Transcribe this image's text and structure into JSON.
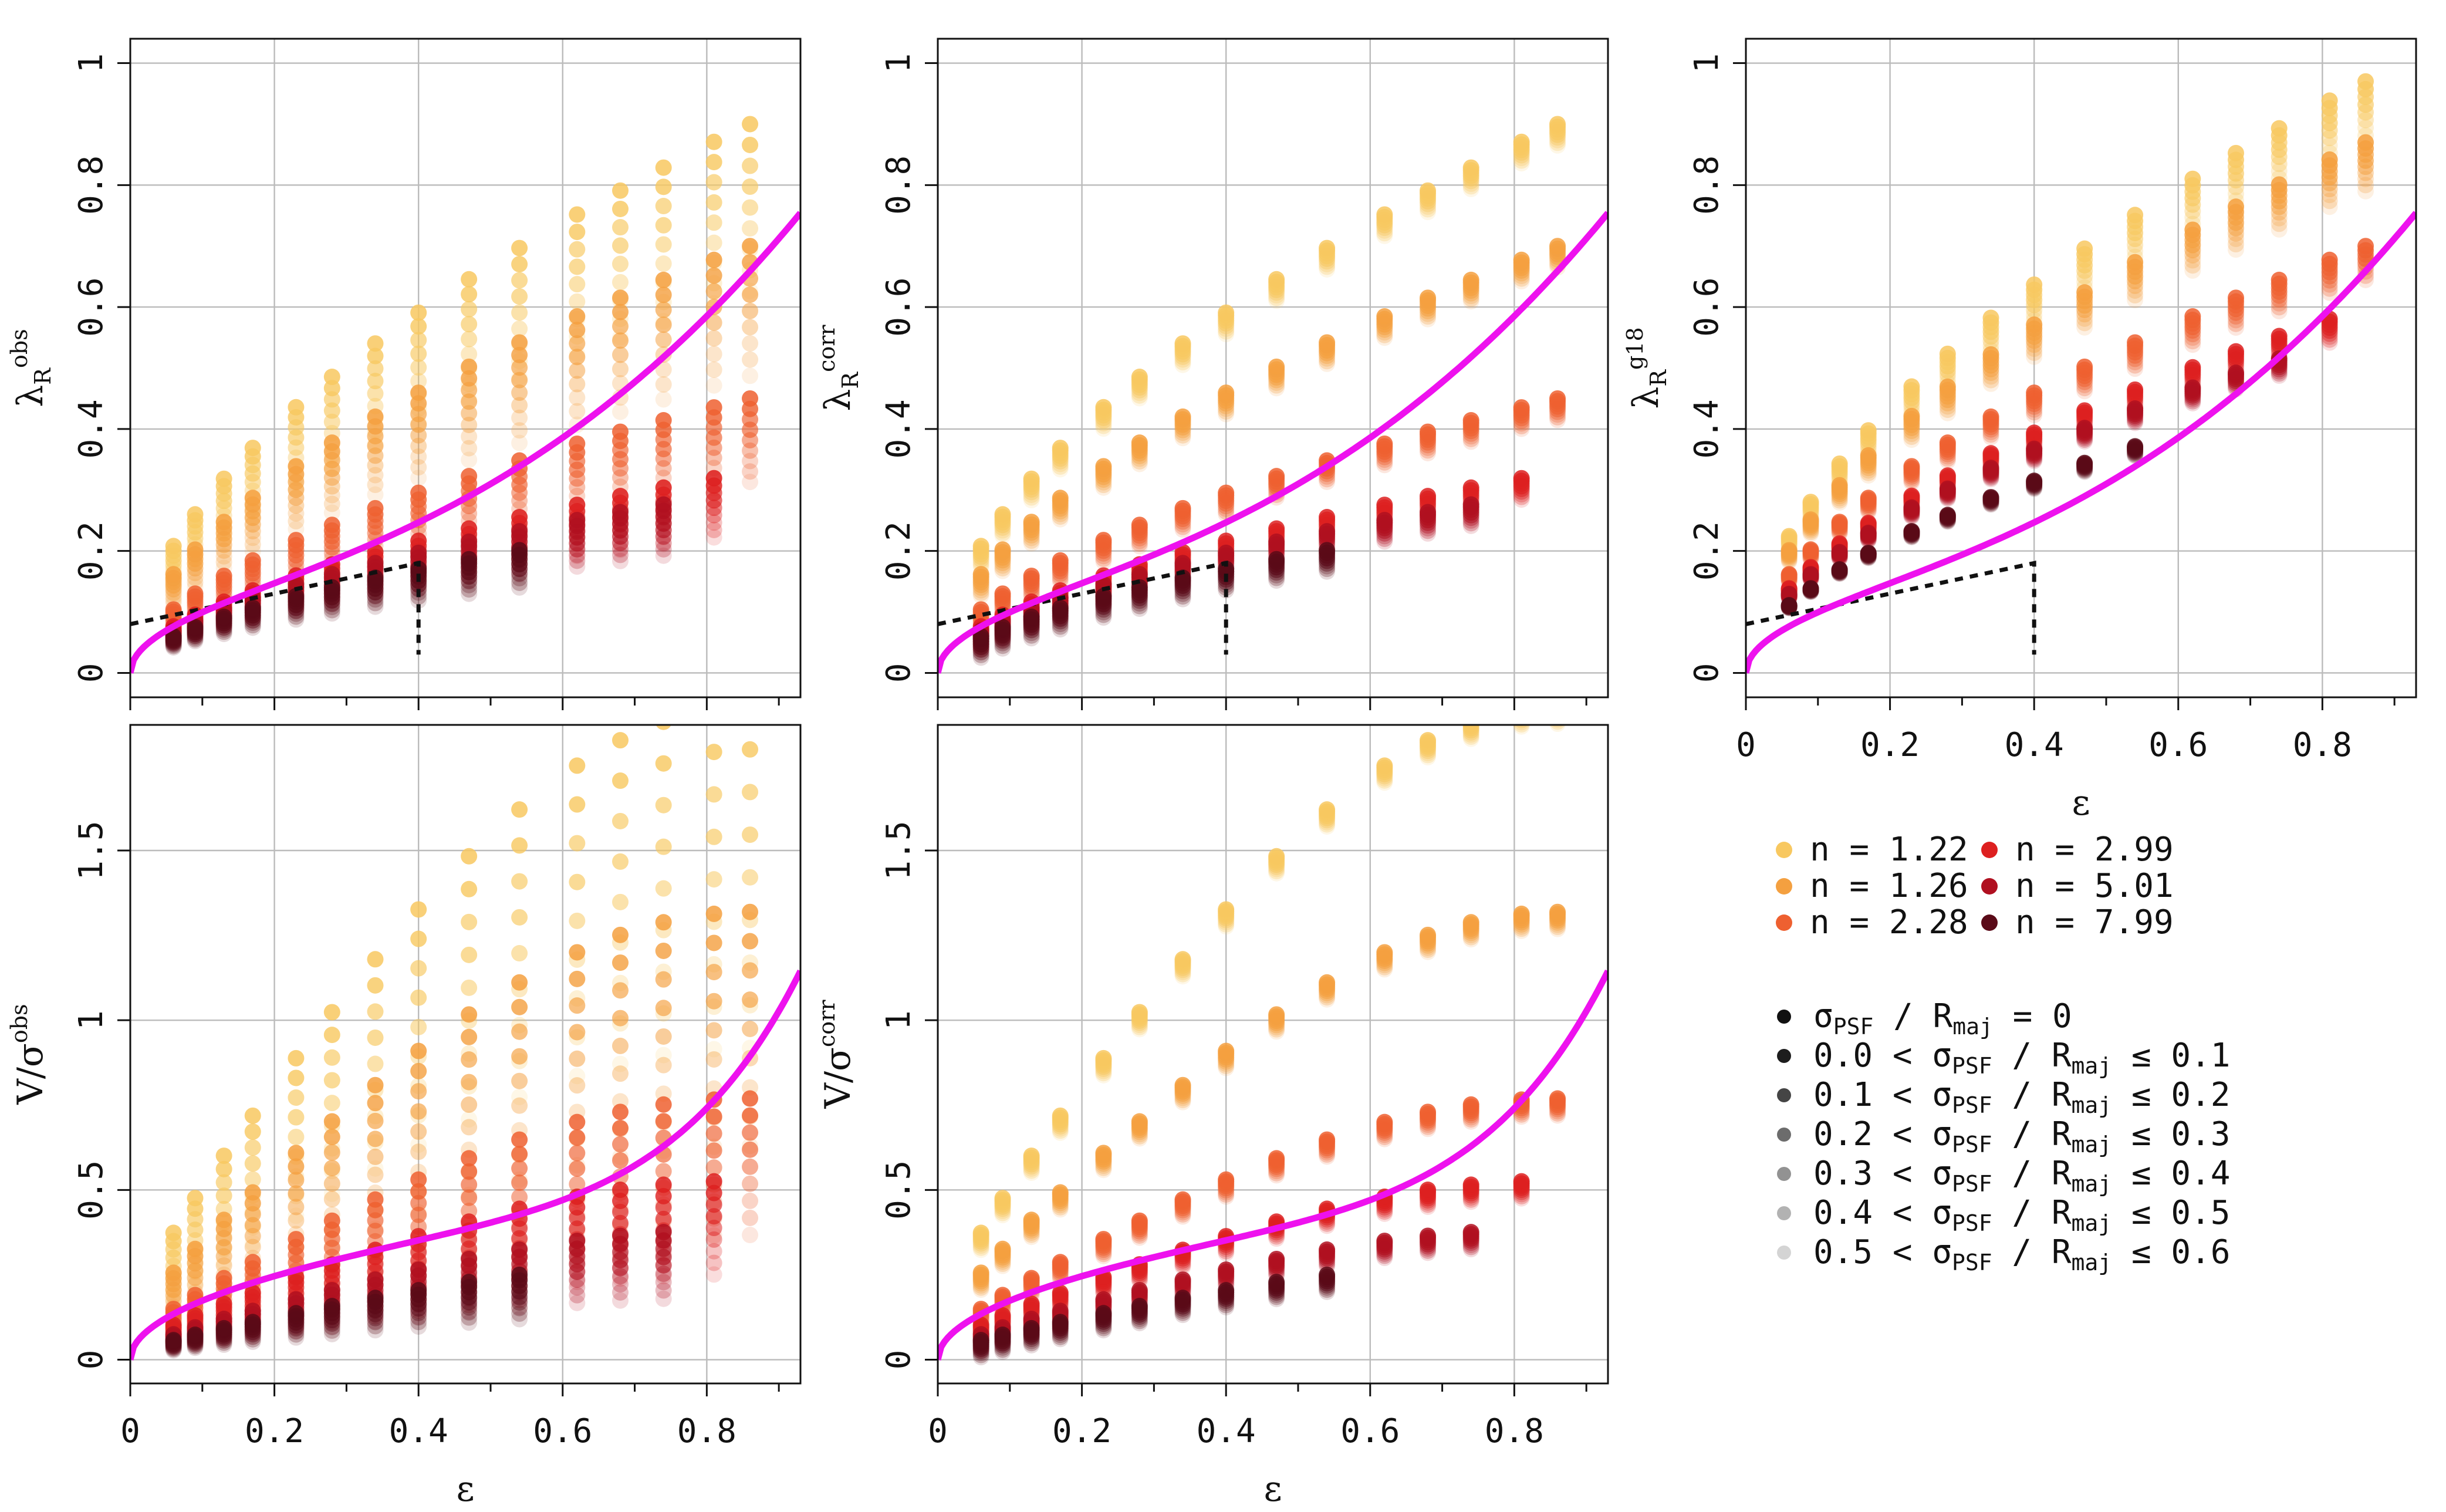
{
  "legend": {
    "models": [
      {
        "label": "n = 1.22",
        "color": "#f8c860"
      },
      {
        "label": "n = 1.26",
        "color": "#f4a040"
      },
      {
        "label": "n = 2.28",
        "color": "#ee6030"
      },
      {
        "label": "n = 2.99",
        "color": "#dd2020"
      },
      {
        "label": "n = 5.01",
        "color": "#b01020"
      },
      {
        "label": "n = 7.99",
        "color": "#5a0a18"
      }
    ],
    "psf_bins": [
      {
        "left": "",
        "right": "= 0",
        "alpha": 1.0
      },
      {
        "left": "0.0 <",
        "right": "≤ 0.1",
        "alpha": 0.95
      },
      {
        "left": "0.1 <",
        "right": "≤ 0.2",
        "alpha": 0.78
      },
      {
        "left": "0.2 <",
        "right": "≤ 0.3",
        "alpha": 0.62
      },
      {
        "left": "0.3 <",
        "right": "≤ 0.4",
        "alpha": 0.46
      },
      {
        "left": "0.4 <",
        "right": "≤ 0.5",
        "alpha": 0.32
      },
      {
        "left": "0.5 <",
        "right": "≤ 0.6",
        "alpha": 0.18
      }
    ],
    "psf_symbol": "σ",
    "psf_sub": "PSF",
    "slash": "/",
    "rmaj_symbol": "R",
    "rmaj_sub": "maj"
  },
  "chart_data": [
    {
      "type": "scatter",
      "panel": "lambda-obs",
      "ylabel": "λ",
      "ylabel_sub": "R",
      "ylabel_sup": "obs",
      "xlabel": "",
      "xlim": [
        0,
        0.93
      ],
      "ylim": [
        -0.04,
        1.04
      ],
      "xticks": [
        "0",
        "0.2",
        "0.4",
        "0.6",
        "0.8"
      ],
      "yticks": [
        0,
        0.2,
        0.4,
        0.6,
        0.8,
        1
      ],
      "show_xtick_labels": false,
      "grid": true,
      "point_model": "lambda",
      "spread": 0.32,
      "uniform_spread": true,
      "has_dashed_region": true,
      "reference_curve": "lambda",
      "curve_color": "#ee11ee"
    },
    {
      "type": "scatter",
      "panel": "lambda-corr",
      "ylabel": "λ",
      "ylabel_sub": "R",
      "ylabel_sup": "corr",
      "xlabel": "",
      "xlim": [
        0,
        0.93
      ],
      "ylim": [
        -0.04,
        1.04
      ],
      "xticks": [
        "0",
        "0.2",
        "0.4",
        "0.6",
        "0.8"
      ],
      "yticks": [
        0,
        0.2,
        0.4,
        0.6,
        0.8,
        1
      ],
      "show_xtick_labels": false,
      "grid": true,
      "point_model": "lambda",
      "spread": 0.035,
      "uniform_spread": true,
      "has_dashed_region": true,
      "reference_curve": "lambda",
      "curve_color": "#ee11ee"
    },
    {
      "type": "scatter",
      "panel": "lambda-g18",
      "ylabel": "λ",
      "ylabel_sub": "R",
      "ylabel_sup": "g18",
      "xlabel": "ε",
      "xlim": [
        0,
        0.93
      ],
      "ylim": [
        -0.04,
        1.04
      ],
      "xticks": [
        "0",
        "0.2",
        "0.4",
        "0.6",
        "0.8"
      ],
      "yticks": [
        0,
        0.2,
        0.4,
        0.6,
        0.8,
        1
      ],
      "show_xtick_labels": true,
      "grid": true,
      "point_model": "lambda_g18",
      "spread": 0.11,
      "uniform_spread": false,
      "has_dashed_region": true,
      "reference_curve": "lambda",
      "curve_color": "#ee11ee"
    },
    {
      "type": "scatter",
      "panel": "vsigma-obs",
      "ylabel": "V/σ",
      "ylabel_sub": "",
      "ylabel_sup": "obs",
      "xlabel": "ε",
      "xlim": [
        0,
        0.93
      ],
      "ylim": [
        -0.07,
        1.87
      ],
      "xticks": [
        "0",
        "0.2",
        "0.4",
        "0.6",
        "0.8"
      ],
      "yticks": [
        0,
        0.5,
        1,
        1.5
      ],
      "show_xtick_labels": true,
      "grid": true,
      "point_model": "vsigma",
      "spread": 0.55,
      "uniform_spread": true,
      "has_dashed_region": false,
      "reference_curve": "vsigma",
      "curve_color": "#ee11ee"
    },
    {
      "type": "scatter",
      "panel": "vsigma-corr",
      "ylabel": "V/σ",
      "ylabel_sub": "",
      "ylabel_sup": "corr",
      "xlabel": "ε",
      "xlim": [
        0,
        0.93
      ],
      "ylim": [
        -0.07,
        1.87
      ],
      "xticks": [
        "0",
        "0.2",
        "0.4",
        "0.6",
        "0.8"
      ],
      "yticks": [
        0,
        0.5,
        1,
        1.5
      ],
      "show_xtick_labels": true,
      "grid": true,
      "point_model": "vsigma",
      "spread": 0.05,
      "uniform_spread": true,
      "has_dashed_region": false,
      "reference_curve": "vsigma",
      "curve_color": "#ee11ee"
    }
  ],
  "model_tracks": {
    "eps": [
      0.06,
      0.09,
      0.13,
      0.17,
      0.23,
      0.28,
      0.34,
      0.4,
      0.47,
      0.54,
      0.62,
      0.68,
      0.74,
      0.81,
      0.86
    ],
    "lambda_max": [
      0.9,
      0.7,
      0.45,
      0.33,
      0.3,
      0.26
    ],
    "lambda_g18_max": [
      0.97,
      0.87,
      0.7,
      0.6,
      0.56,
      0.48
    ],
    "vsigma_max": [
      1.75,
      1.2,
      0.7,
      0.48,
      0.35,
      0.27
    ],
    "eps_end": [
      0.86,
      0.86,
      0.86,
      0.81,
      0.74,
      0.54
    ]
  },
  "dashed_region": {
    "line_start": [
      0,
      0.08
    ],
    "line_end": [
      0.4,
      0.18
    ],
    "drop_to": [
      0.4,
      0.03
    ]
  }
}
